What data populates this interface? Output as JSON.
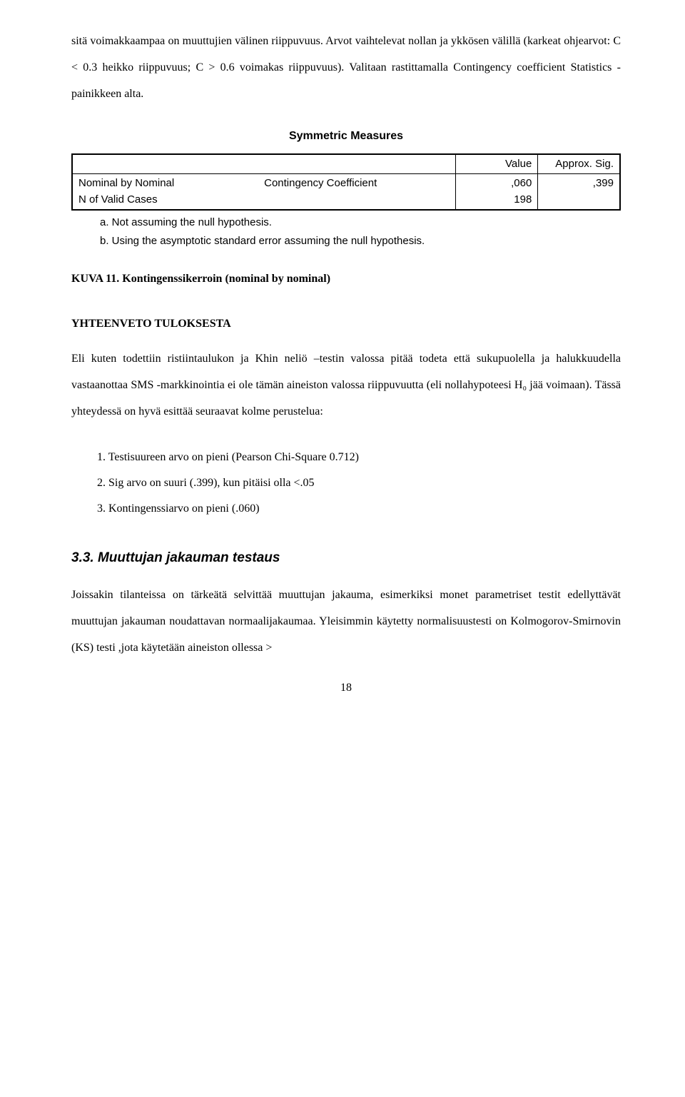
{
  "para_top": "sitä voimakkaampaa on muuttujien välinen riippuvuus. Arvot vaihtelevat nollan ja ykkösen välillä (karkeat ohjearvot: C < 0.3 heikko riippuvuus; C > 0.6 voimakas riippuvuus). Valitaan rastittamalla Contingency coefficient Statistics -painikkeen alta.",
  "table_title": "Symmetric Measures",
  "table": {
    "hdr_value": "Value",
    "hdr_sig": "Approx. Sig.",
    "row1_label": "Nominal by Nominal",
    "row1_measure": "Contingency Coefficient",
    "row1_value": ",060",
    "row1_sig": ",399",
    "row2_label": "N of Valid Cases",
    "row2_value": "198"
  },
  "note_a": "a. Not assuming the null hypothesis.",
  "note_b": "b. Using the asymptotic standard error assuming the null hypothesis.",
  "caption": "KUVA 11. Kontingenssikerroin (nominal by nominal)",
  "section_head": "YHTEENVETO TULOKSESTA",
  "para_mid": "Eli kuten todettiin ristiintaulukon ja Khin neliö –testin valossa pitää todeta että sukupuolella ja halukkuudella vastaanottaa SMS -markkinointia ei ole tämän aineiston valossa riippuvuutta (eli nollahypoteesi H₀ jää voimaan). Tässä yhteydessä on hyvä esittää seuraavat kolme perustelua:",
  "list": {
    "i1": "1.  Testisuureen arvo on pieni (Pearson Chi-Square 0.712)",
    "i2": "2.  Sig arvo on suuri (.399), kun pitäisi olla <.05",
    "i3": "3.  Kontingenssiarvo on pieni (.060)"
  },
  "h3": "3.3. Muuttujan jakauman testaus",
  "para_bot": "Joissakin tilanteissa on tärkeätä selvittää muuttujan jakauma, esimerkiksi monet parametriset testit edellyttävät muuttujan jakauman noudattavan normaalijakaumaa. Yleisimmin käytetty normalisuustesti on Kolmogorov-Smirnovin (KS) testi ,jota käytetään aineiston ollessa >",
  "pagenum": "18"
}
